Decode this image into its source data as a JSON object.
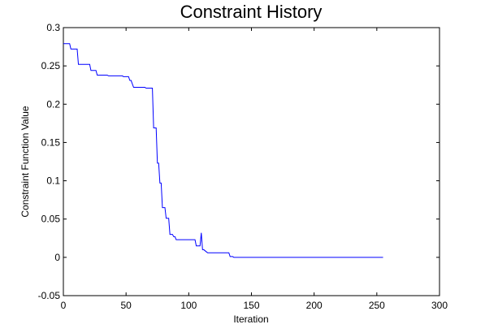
{
  "chart_data": {
    "type": "line",
    "title": "Constraint History",
    "xlabel": "Iteration",
    "ylabel": "Constraint Function Value",
    "xlim": [
      0,
      300
    ],
    "ylim": [
      -0.05,
      0.3
    ],
    "xticks": [
      0,
      50,
      100,
      150,
      200,
      250,
      300
    ],
    "xtick_labels": [
      "0",
      "50",
      "100",
      "150",
      "200",
      "250",
      "300"
    ],
    "yticks": [
      -0.05,
      0,
      0.05,
      0.1,
      0.15,
      0.2,
      0.25,
      0.3
    ],
    "ytick_labels": [
      "-0.05",
      "0",
      "0.05",
      "0.1",
      "0.15",
      "0.2",
      "0.25",
      "0.3"
    ],
    "grid": false,
    "line_color": "#0000ff",
    "series": [
      {
        "step": "post",
        "x": [
          0,
          5,
          6,
          11,
          12,
          21,
          22,
          26,
          27,
          35,
          36,
          47,
          48,
          52,
          53,
          54,
          56,
          65,
          66,
          71,
          72,
          74,
          75,
          76,
          77,
          78,
          79,
          80,
          81,
          82,
          84,
          85,
          86,
          87,
          88,
          89,
          90,
          91,
          92,
          105,
          106,
          109,
          110,
          111,
          112,
          115,
          116,
          132,
          133,
          135,
          136,
          255
        ],
        "y": [
          0.279,
          0.279,
          0.272,
          0.272,
          0.252,
          0.252,
          0.244,
          0.244,
          0.238,
          0.238,
          0.237,
          0.237,
          0.236,
          0.236,
          0.231,
          0.231,
          0.222,
          0.222,
          0.221,
          0.221,
          0.169,
          0.169,
          0.123,
          0.123,
          0.097,
          0.097,
          0.065,
          0.065,
          0.065,
          0.051,
          0.051,
          0.03,
          0.03,
          0.03,
          0.027,
          0.027,
          0.023,
          0.023,
          0.023,
          0.023,
          0.015,
          0.015,
          0.032,
          0.01,
          0.01,
          0.006,
          0.006,
          0.006,
          0.001,
          0.001,
          0.0,
          0.0
        ]
      }
    ]
  }
}
